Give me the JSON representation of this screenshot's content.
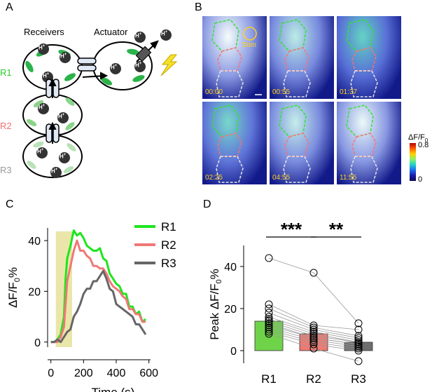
{
  "panels": {
    "a": "A",
    "b": "B",
    "c": "C",
    "d": "D"
  },
  "panel_a": {
    "receivers_label": "Receivers",
    "actuator_label": "Actuator",
    "proton_label": "H",
    "proton_superscript": "+",
    "cell_labels": [
      "R1",
      "R2",
      "R3"
    ],
    "cell_colors": {
      "R1": "#2ecc2e",
      "R2": "#f07070",
      "R3": "#9a9a9a"
    }
  },
  "panel_b": {
    "stim_label": "Stim",
    "time_labels": [
      "00:00",
      "00:55",
      "01:37",
      "02:25",
      "04:55",
      "11:55"
    ],
    "colorbar": {
      "title": "ΔF/F",
      "title_sub": "0",
      "max": "0.8",
      "min": "0"
    }
  },
  "chart_data": [
    {
      "type": "line",
      "panel": "C",
      "xlabel": "Time (s)",
      "ylabel": "ΔF/F",
      "ylabel_sub": "0",
      "ylabel_suffix": "%",
      "xlim": [
        0,
        600
      ],
      "ylim": [
        -2,
        45
      ],
      "xticks": [
        "0",
        "200",
        "400",
        "600"
      ],
      "yticks": [
        "0",
        "20",
        "40"
      ],
      "stim_window": [
        30,
        130
      ],
      "series": [
        {
          "name": "R1",
          "color": "#1de61d",
          "x": [
            0,
            20,
            40,
            60,
            80,
            90,
            100,
            120,
            140,
            160,
            180,
            200,
            220,
            240,
            260,
            280,
            300,
            320,
            340,
            360,
            380,
            400,
            420,
            440,
            460,
            480,
            500,
            520,
            540,
            560,
            580
          ],
          "y": [
            0,
            0,
            1,
            3,
            10,
            25,
            33,
            38,
            44,
            42,
            43,
            41,
            38,
            37,
            36,
            36,
            37,
            33,
            32,
            27,
            25,
            23,
            22,
            19,
            19,
            14,
            14,
            11,
            12,
            8,
            9
          ]
        },
        {
          "name": "R2",
          "color": "#f07878",
          "x": [
            0,
            20,
            40,
            60,
            80,
            90,
            100,
            120,
            140,
            160,
            180,
            200,
            220,
            240,
            260,
            280,
            300,
            320,
            340,
            360,
            380,
            400,
            420,
            440,
            460,
            480,
            500,
            520,
            540,
            560,
            580
          ],
          "y": [
            0,
            0,
            0,
            2,
            6,
            15,
            24,
            30,
            36,
            40,
            36,
            36,
            34,
            33,
            30,
            30,
            29,
            29,
            27,
            24,
            22,
            21,
            20,
            18,
            17,
            13,
            13,
            11,
            11,
            8,
            8
          ]
        },
        {
          "name": "R3",
          "color": "#666666",
          "x": [
            0,
            20,
            40,
            60,
            80,
            100,
            120,
            140,
            160,
            180,
            200,
            220,
            240,
            260,
            280,
            300,
            320,
            340,
            360,
            380,
            400,
            420,
            440,
            460,
            480,
            500,
            520,
            540,
            560,
            580
          ],
          "y": [
            0,
            0,
            1,
            0,
            2,
            4,
            5,
            10,
            12,
            15,
            19,
            21,
            21,
            24,
            24,
            26,
            28,
            25,
            21,
            20,
            15,
            14,
            13,
            12,
            11,
            10,
            7,
            7,
            5,
            3
          ]
        }
      ]
    },
    {
      "type": "bar",
      "panel": "D",
      "ylabel": "Peak ΔF/F",
      "ylabel_sub": "0",
      "ylabel_suffix": "%",
      "ylim": [
        -6,
        50
      ],
      "yticks": [
        "0",
        "20",
        "40"
      ],
      "categories": [
        "R1",
        "R2",
        "R3"
      ],
      "values": [
        14,
        8,
        4
      ],
      "errors": [
        1.8,
        1.6,
        0.9
      ],
      "colors": [
        "#6fd34a",
        "#f07a72",
        "#6e6e6e"
      ],
      "points": [
        [
          44,
          22,
          20,
          18,
          16,
          15,
          14,
          13,
          12,
          11,
          10,
          9,
          8
        ],
        [
          37,
          12,
          11,
          10,
          9,
          8,
          7,
          6,
          6,
          5,
          4,
          3,
          1
        ],
        [
          13,
          10,
          7,
          6,
          5,
          4,
          4,
          3,
          3,
          2,
          1,
          0,
          -5
        ]
      ],
      "significance": [
        "***",
        "**"
      ]
    }
  ]
}
